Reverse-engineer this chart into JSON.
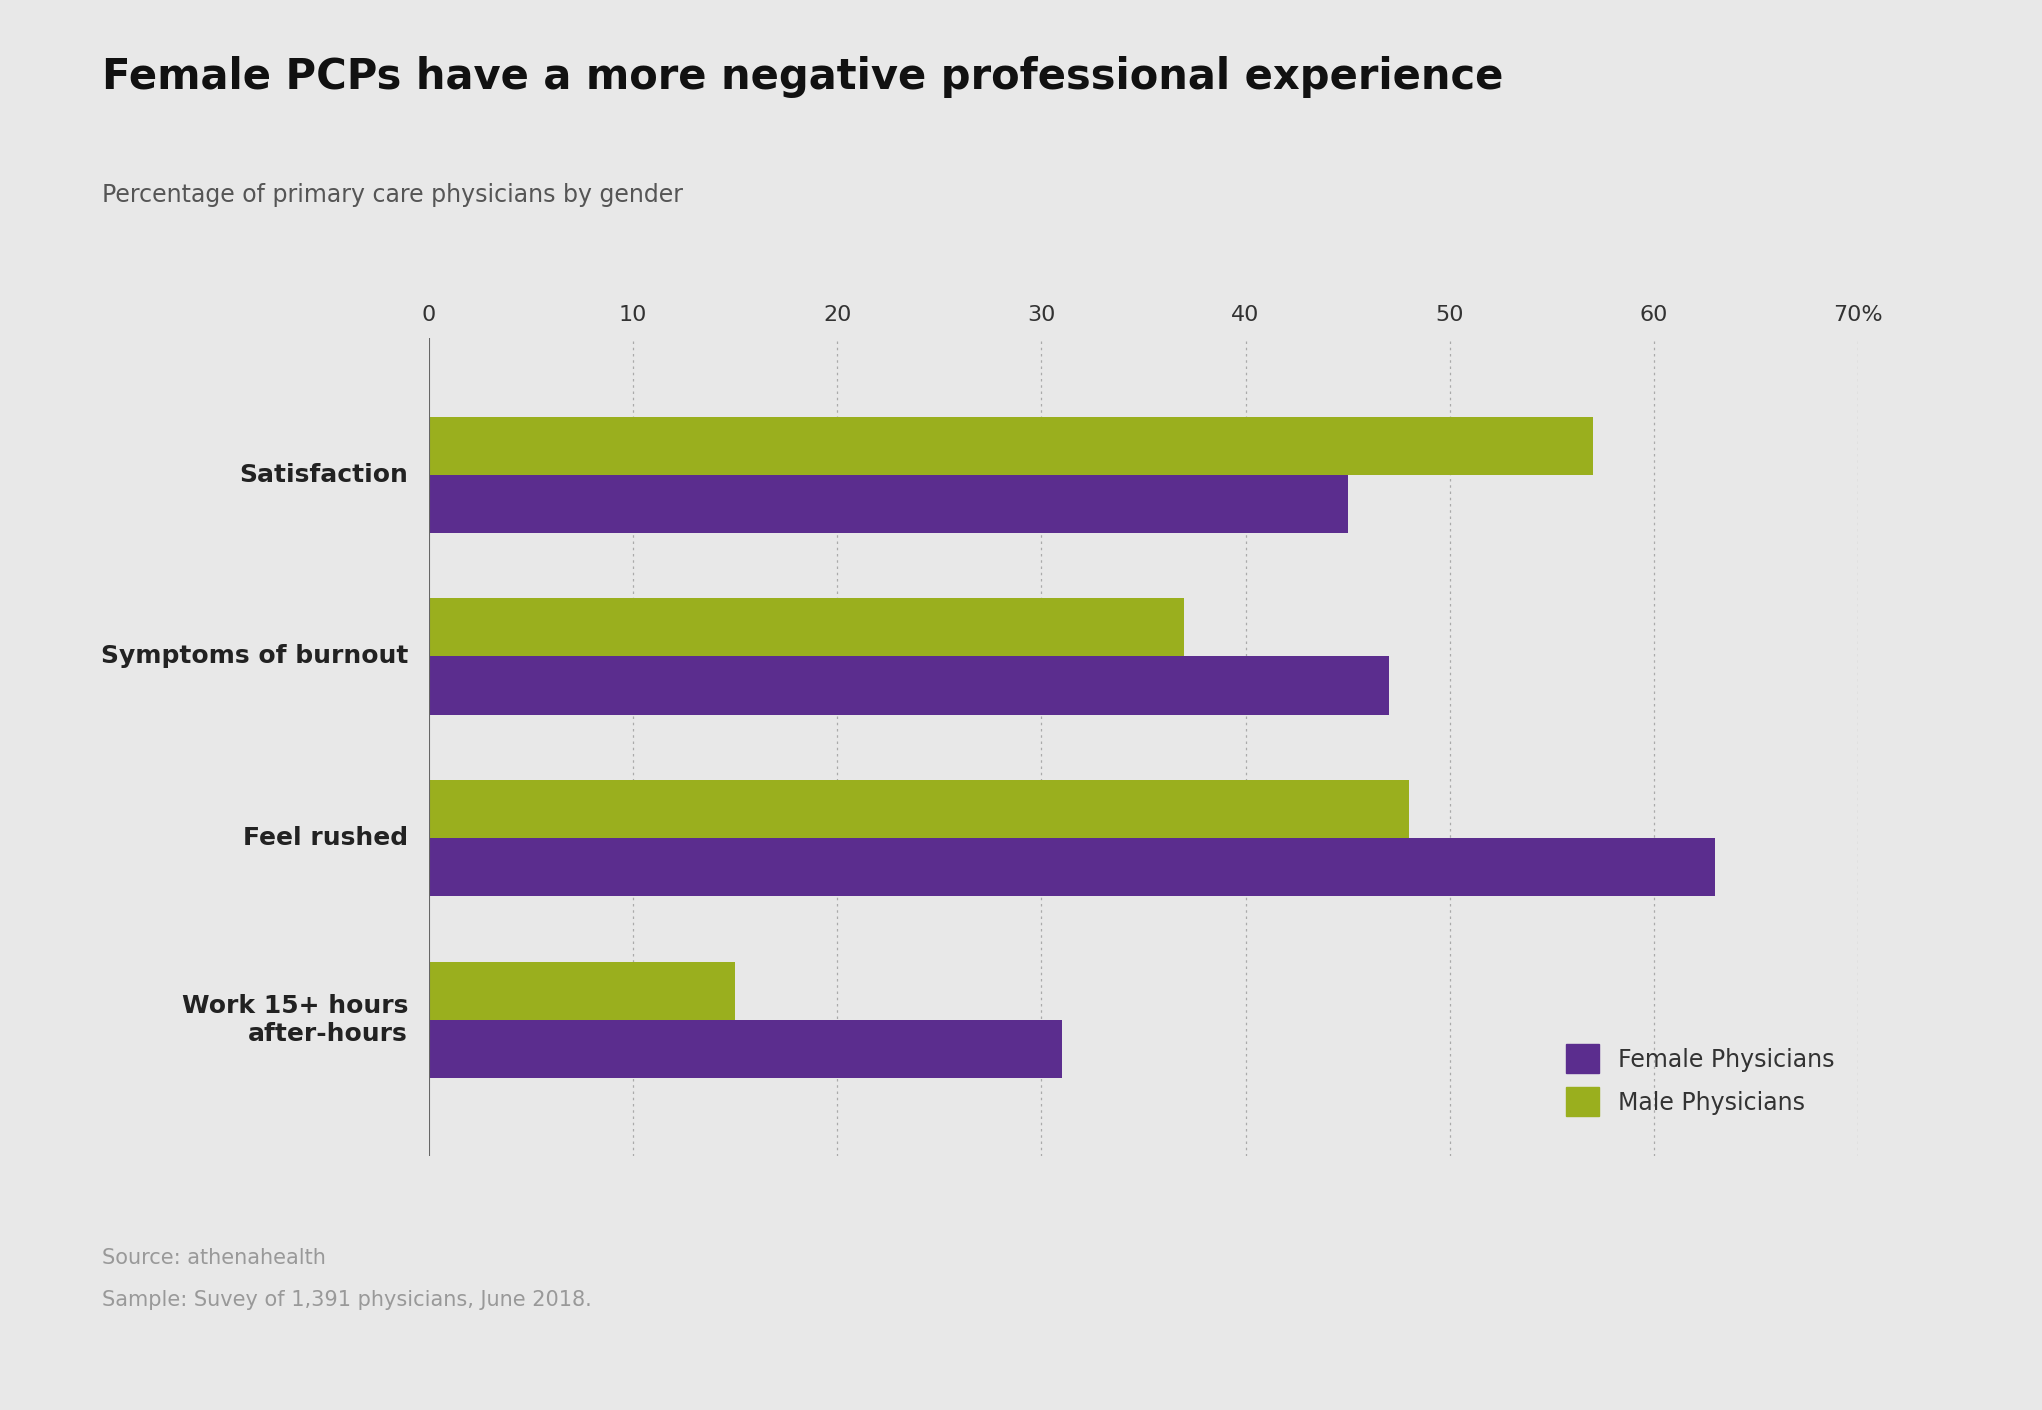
{
  "title": "Female PCPs have a more negative professional experience",
  "subtitle": "Percentage of primary care physicians by gender",
  "source_line1": "Source: athenahealth",
  "source_line2": "Sample: Suvey of 1,391 physicians, June 2018.",
  "categories": [
    "Satisfaction",
    "Symptoms of burnout",
    "Feel rushed",
    "Work 15+ hours\nafter-hours"
  ],
  "female_values": [
    45,
    47,
    63,
    31
  ],
  "male_values": [
    57,
    37,
    48,
    15
  ],
  "female_color": "#5b2d8e",
  "male_color": "#9aaf1e",
  "background_color": "#e8e8e8",
  "xlim": [
    0,
    70
  ],
  "xticks": [
    0,
    10,
    20,
    30,
    40,
    50,
    60,
    70
  ],
  "xtick_labels": [
    "0",
    "10",
    "20",
    "30",
    "40",
    "50",
    "60",
    "70%"
  ],
  "legend_labels": [
    "Female Physicians",
    "Male Physicians"
  ],
  "title_fontsize": 30,
  "subtitle_fontsize": 17,
  "label_fontsize": 18,
  "tick_fontsize": 16,
  "legend_fontsize": 17,
  "source_fontsize": 15,
  "bar_height": 0.32
}
